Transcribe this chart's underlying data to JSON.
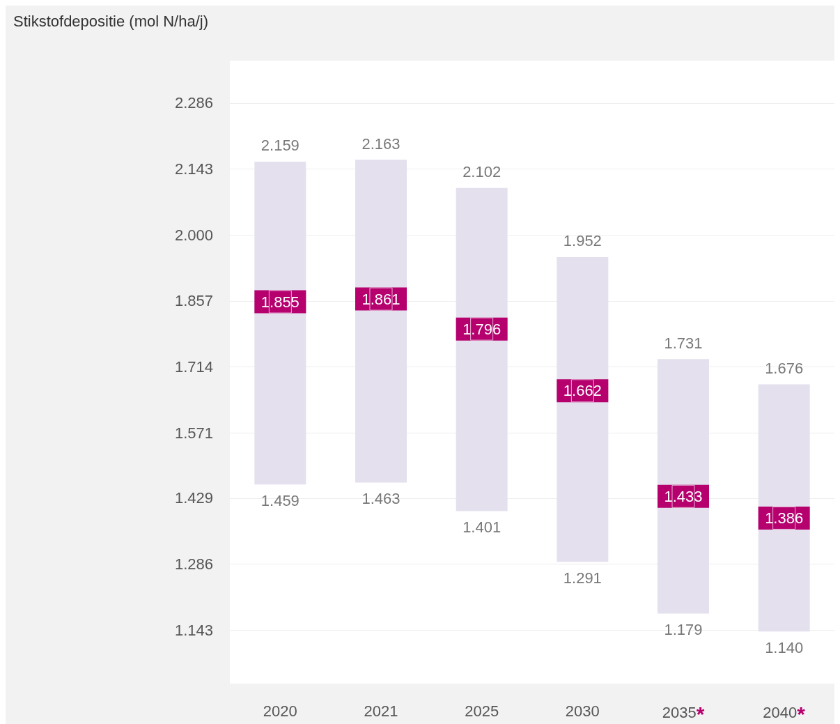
{
  "chart_data": {
    "type": "bar",
    "title": "Stikstofdepositie (mol N/ha/j)",
    "categories": [
      "2020",
      "2021",
      "2025",
      "2030",
      "2035*",
      "2040*"
    ],
    "series": [
      {
        "color": "#e4e0ee",
        "base": [
          1459,
          1463,
          1401,
          1291,
          1179,
          1140
        ],
        "values": [
          700,
          700,
          701,
          661,
          552,
          536
        ]
      },
      {
        "type": "scatter",
        "marker": "square",
        "color": "#b5006e",
        "values": [
          1855,
          1861,
          1796,
          1662,
          1433,
          1386
        ],
        "value_labels": [
          "1.855",
          "1.861",
          "1.796",
          "1.662",
          "1.433",
          "1.386"
        ]
      }
    ],
    "annotations": [
      {
        "text": "2.159",
        "x": "2020",
        "y": 2159
      },
      {
        "text": "1.459",
        "x": "2020",
        "y": 1459
      },
      {
        "text": "2.163",
        "x": "2021",
        "y": 2163
      },
      {
        "text": "1.463",
        "x": "2021",
        "y": 1463
      },
      {
        "text": "2.102",
        "x": "2025",
        "y": 2102
      },
      {
        "text": "1.401",
        "x": "2025",
        "y": 1401
      },
      {
        "text": "1.952",
        "x": "2030",
        "y": 1952
      },
      {
        "text": "1.291",
        "x": "2030",
        "y": 1291
      },
      {
        "text": "1.731",
        "x": "2035*",
        "y": 1731
      },
      {
        "text": "1.179",
        "x": "2035*",
        "y": 1179
      },
      {
        "text": "1.676",
        "x": "2040*",
        "y": 1676
      },
      {
        "text": "1.140",
        "x": "2040*",
        "y": 1140
      }
    ],
    "ylim": [
      1027,
      2378
    ],
    "yticks": [
      {
        "value": 1143,
        "label": "1.143"
      },
      {
        "value": 1286,
        "label": "1.286"
      },
      {
        "value": 1429,
        "label": "1.429"
      },
      {
        "value": 1571,
        "label": "1.571"
      },
      {
        "value": 1714,
        "label": "1.714"
      },
      {
        "value": 1857,
        "label": "1.857"
      },
      {
        "value": 2000,
        "label": "2.000"
      },
      {
        "value": 2143,
        "label": "2.143"
      },
      {
        "value": 2286,
        "label": "2.286"
      }
    ],
    "grid": "y"
  }
}
